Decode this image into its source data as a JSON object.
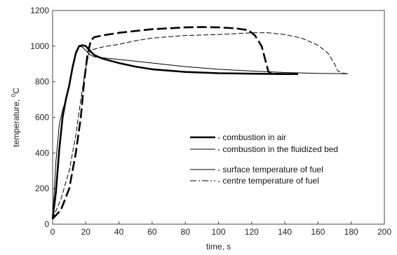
{
  "chart_data": {
    "type": "line",
    "xlabel": "time, s",
    "ylabel": "temperature, ",
    "ylabel_unit": "C",
    "ylabel_sup": "0",
    "xlim": [
      0,
      200
    ],
    "ylim": [
      0,
      1200
    ],
    "x_ticks": [
      "0",
      "20",
      "40",
      "60",
      "80",
      "100",
      "120",
      "140",
      "160",
      "180",
      "200"
    ],
    "y_ticks": [
      "0",
      "200",
      "400",
      "600",
      "800",
      "1000",
      "1200"
    ],
    "grid": false,
    "legend_placement": "center-right",
    "legend": [
      {
        "text": "- combustion in air",
        "stroke": "thick",
        "dash": "solid"
      },
      {
        "text": "- combustion in the fluidized bed",
        "stroke": "thin",
        "dash": "solid"
      },
      {
        "text": "- surface temperature of fuel",
        "stroke": "thin",
        "dash": "solid"
      },
      {
        "text": "- centre temperature of fuel",
        "stroke": "thin",
        "dash": "dash-dot"
      }
    ],
    "series": [
      {
        "key": "air_surface",
        "stroke": "thick",
        "dash": "solid",
        "x": [
          0,
          2,
          4,
          6,
          8,
          10,
          12,
          14,
          16,
          18,
          20,
          22,
          25,
          30,
          40,
          50,
          60,
          80,
          100,
          120,
          140,
          148
        ],
        "y": [
          30,
          180,
          420,
          600,
          700,
          780,
          880,
          960,
          1000,
          1005,
          1000,
          980,
          950,
          930,
          905,
          885,
          870,
          855,
          848,
          845,
          843,
          843
        ]
      },
      {
        "key": "fluidized_surface",
        "stroke": "thin",
        "dash": "solid",
        "x": [
          0,
          2,
          4,
          6,
          8,
          10,
          12,
          14,
          16,
          18,
          20,
          22,
          25,
          30,
          40,
          50,
          60,
          80,
          100,
          120,
          140,
          160,
          178
        ],
        "y": [
          30,
          350,
          560,
          640,
          700,
          780,
          880,
          970,
          1000,
          995,
          975,
          955,
          940,
          935,
          925,
          915,
          905,
          885,
          870,
          860,
          852,
          847,
          845
        ]
      },
      {
        "key": "air_centre",
        "stroke": "thick",
        "dash": "dashed",
        "x": [
          0,
          5,
          10,
          14,
          17,
          19,
          21,
          23,
          25,
          30,
          40,
          50,
          60,
          70,
          80,
          90,
          100,
          110,
          118,
          122,
          126,
          128,
          130,
          131,
          133,
          140,
          148
        ],
        "y": [
          30,
          80,
          200,
          400,
          600,
          800,
          950,
          1030,
          1050,
          1060,
          1075,
          1085,
          1095,
          1100,
          1105,
          1107,
          1105,
          1100,
          1090,
          1060,
          1000,
          930,
          860,
          848,
          845,
          843,
          843
        ]
      },
      {
        "key": "fluidized_centre",
        "stroke": "thin",
        "dash": "dashed",
        "x": [
          0,
          5,
          10,
          14,
          17,
          20,
          22,
          24,
          26,
          30,
          40,
          50,
          60,
          80,
          100,
          120,
          130,
          140,
          150,
          160,
          166,
          170,
          172,
          175,
          178
        ],
        "y": [
          30,
          140,
          300,
          500,
          700,
          880,
          960,
          980,
          985,
          995,
          1010,
          1030,
          1045,
          1060,
          1065,
          1075,
          1075,
          1065,
          1045,
          1005,
          960,
          900,
          860,
          848,
          845
        ]
      }
    ]
  }
}
